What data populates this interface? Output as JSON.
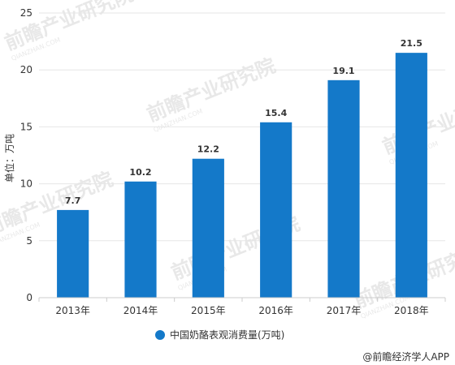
{
  "chart_data": {
    "type": "bar",
    "categories": [
      "2013年",
      "2014年",
      "2015年",
      "2016年",
      "2017年",
      "2018年"
    ],
    "values": [
      7.7,
      10.2,
      12.2,
      15.4,
      19.1,
      21.5
    ],
    "value_labels": [
      "7.7",
      "10.2",
      "12.2",
      "15.4",
      "19.1",
      "21.5"
    ],
    "ylim": [
      0,
      25
    ],
    "yticks": [
      "0",
      "5",
      "10",
      "15",
      "20",
      "25"
    ],
    "ylabel": "单位：万吨",
    "xlabel": "",
    "title": "",
    "series": [
      {
        "name": "中国奶酪表观消费量(万吨)",
        "color": "#1479c9"
      }
    ],
    "legend_position": "bottom-center",
    "grid": "horizontal"
  },
  "source": "@前瞻经济学人APP",
  "watermark": {
    "text": "前瞻产业研究院",
    "sub": "QIANZHAN.COM"
  },
  "colors": {
    "bar": "#1479c9",
    "grid": "#e6e6e6",
    "axis": "#cccccc",
    "text": "#333333"
  }
}
